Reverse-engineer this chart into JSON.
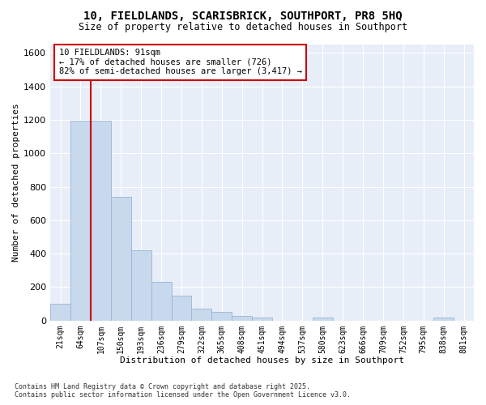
{
  "title_line1": "10, FIELDLANDS, SCARISBRICK, SOUTHPORT, PR8 5HQ",
  "title_line2": "Size of property relative to detached houses in Southport",
  "xlabel": "Distribution of detached houses by size in Southport",
  "ylabel": "Number of detached properties",
  "bar_color": "#c8d8ed",
  "bar_edge_color": "#9ab4d4",
  "vline_color": "#cc0000",
  "categories": [
    "21sqm",
    "64sqm",
    "107sqm",
    "150sqm",
    "193sqm",
    "236sqm",
    "279sqm",
    "322sqm",
    "365sqm",
    "408sqm",
    "451sqm",
    "494sqm",
    "537sqm",
    "580sqm",
    "623sqm",
    "666sqm",
    "709sqm",
    "752sqm",
    "795sqm",
    "838sqm",
    "881sqm"
  ],
  "values": [
    100,
    1195,
    1195,
    740,
    420,
    230,
    150,
    70,
    50,
    30,
    20,
    0,
    0,
    20,
    0,
    0,
    0,
    0,
    0,
    20,
    0
  ],
  "ylim": [
    0,
    1650
  ],
  "yticks": [
    0,
    200,
    400,
    600,
    800,
    1000,
    1200,
    1400,
    1600
  ],
  "annotation_text": "10 FIELDLANDS: 91sqm\n← 17% of detached houses are smaller (726)\n82% of semi-detached houses are larger (3,417) →",
  "annotation_box_facecolor": "#ffffff",
  "annotation_box_edgecolor": "#cc0000",
  "footer_line1": "Contains HM Land Registry data © Crown copyright and database right 2025.",
  "footer_line2": "Contains public sector information licensed under the Open Government Licence v3.0.",
  "fig_facecolor": "#ffffff",
  "axes_facecolor": "#e8eef8",
  "grid_color": "#ffffff",
  "figsize": [
    6.0,
    5.0
  ],
  "dpi": 100
}
